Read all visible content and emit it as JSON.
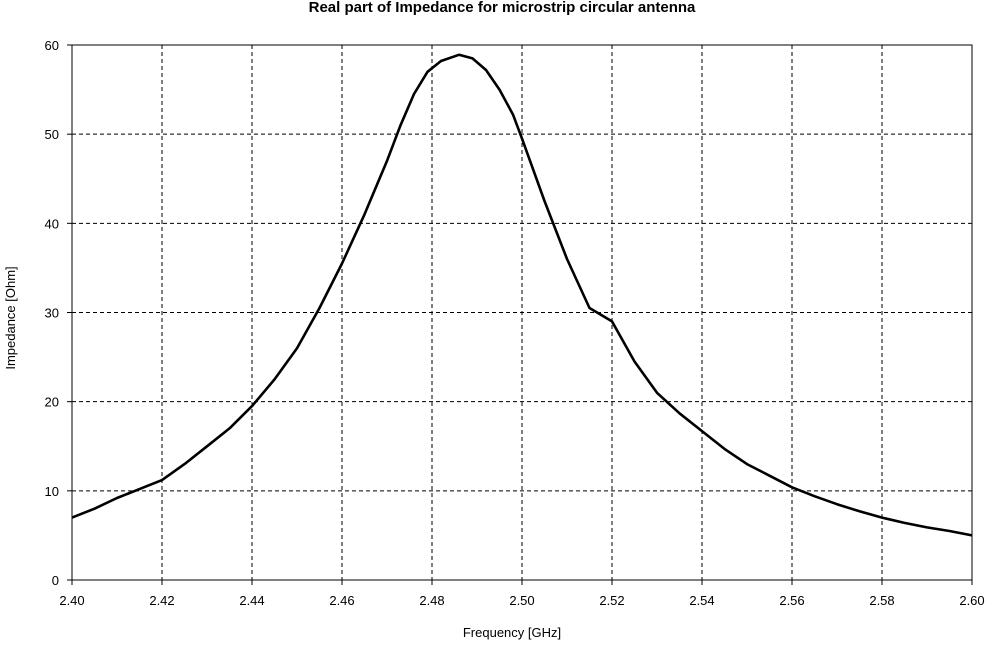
{
  "chart_data": {
    "type": "line",
    "title": "Real part of Impedance for microstrip circular antenna",
    "xlabel": "Frequency [GHz]",
    "ylabel": "Impedance [Ohm]",
    "xlim": [
      2.4,
      2.6
    ],
    "ylim": [
      0,
      60
    ],
    "grid": true,
    "x_ticks": [
      "2.40",
      "2.42",
      "2.44",
      "2.46",
      "2.48",
      "2.50",
      "2.52",
      "2.54",
      "2.56",
      "2.58",
      "2.60"
    ],
    "y_ticks": [
      "0",
      "10",
      "20",
      "30",
      "40",
      "50",
      "60"
    ],
    "series": [
      {
        "color": "#000000",
        "x": [
          2.4,
          2.405,
          2.41,
          2.415,
          2.42,
          2.425,
          2.43,
          2.435,
          2.44,
          2.445,
          2.45,
          2.455,
          2.46,
          2.465,
          2.47,
          2.473,
          2.476,
          2.479,
          2.482,
          2.486,
          2.489,
          2.492,
          2.495,
          2.498,
          2.5,
          2.505,
          2.51,
          2.515,
          2.52,
          2.525,
          2.53,
          2.535,
          2.54,
          2.545,
          2.55,
          2.555,
          2.56,
          2.565,
          2.57,
          2.575,
          2.58,
          2.585,
          2.59,
          2.595,
          2.6
        ],
        "y": [
          7.0,
          8.0,
          9.2,
          10.2,
          11.2,
          13.0,
          15.0,
          17.0,
          19.5,
          22.5,
          26.0,
          30.5,
          35.5,
          41.0,
          47.0,
          51.0,
          54.5,
          57.0,
          58.2,
          58.9,
          58.5,
          57.2,
          55.0,
          52.2,
          49.5,
          42.5,
          36.0,
          30.5,
          29.0,
          24.5,
          21.0,
          18.7,
          16.7,
          14.7,
          13.0,
          11.7,
          10.4,
          9.4,
          8.5,
          7.7,
          7.0,
          6.4,
          5.9,
          5.5,
          5.0
        ]
      }
    ]
  }
}
